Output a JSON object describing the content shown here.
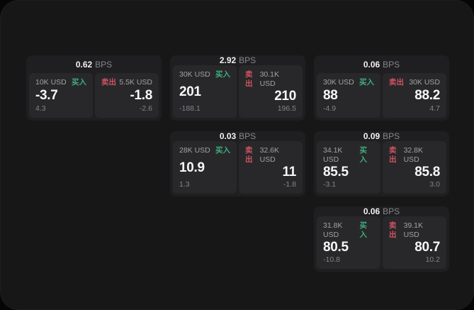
{
  "labels": {
    "bps_unit": "BPS",
    "buy": "买入",
    "sell": "卖出"
  },
  "colors": {
    "green": "#3fae7c",
    "red": "#cf5360",
    "panel_bg": "#171718",
    "card_bg": "#1f1f21",
    "subcard_bg": "#28282a"
  },
  "cards": [
    {
      "bps": "0.62",
      "row": 1,
      "col": 1,
      "buy": {
        "amount": "10K USD",
        "value": "-3.7",
        "delta": "4.3"
      },
      "sell": {
        "amount": "5.5K USD",
        "value": "-1.8",
        "delta": "-2.6"
      }
    },
    {
      "bps": "2.92",
      "row": 1,
      "col": 2,
      "buy": {
        "amount": "30K USD",
        "value": "201",
        "delta": "-188.1"
      },
      "sell": {
        "amount": "30.1K USD",
        "value": "210",
        "delta": "196.5"
      }
    },
    {
      "bps": "0.06",
      "row": 1,
      "col": 3,
      "buy": {
        "amount": "30K USD",
        "value": "88",
        "delta": "-4.9"
      },
      "sell": {
        "amount": "30K USD",
        "value": "88.2",
        "delta": "4.7"
      }
    },
    {
      "bps": "0.03",
      "row": 2,
      "col": 2,
      "buy": {
        "amount": "28K USD",
        "value": "10.9",
        "delta": "1.3"
      },
      "sell": {
        "amount": "32.6K USD",
        "value": "11",
        "delta": "-1.8"
      }
    },
    {
      "bps": "0.09",
      "row": 2,
      "col": 3,
      "buy": {
        "amount": "34.1K USD",
        "value": "85.5",
        "delta": "-3.1"
      },
      "sell": {
        "amount": "32.8K USD",
        "value": "85.8",
        "delta": "3.0"
      }
    },
    {
      "bps": "0.06",
      "row": 3,
      "col": 3,
      "buy": {
        "amount": "31.8K USD",
        "value": "80.5",
        "delta": "-10.8"
      },
      "sell": {
        "amount": "39.1K USD",
        "value": "80.7",
        "delta": "10.2"
      }
    }
  ]
}
